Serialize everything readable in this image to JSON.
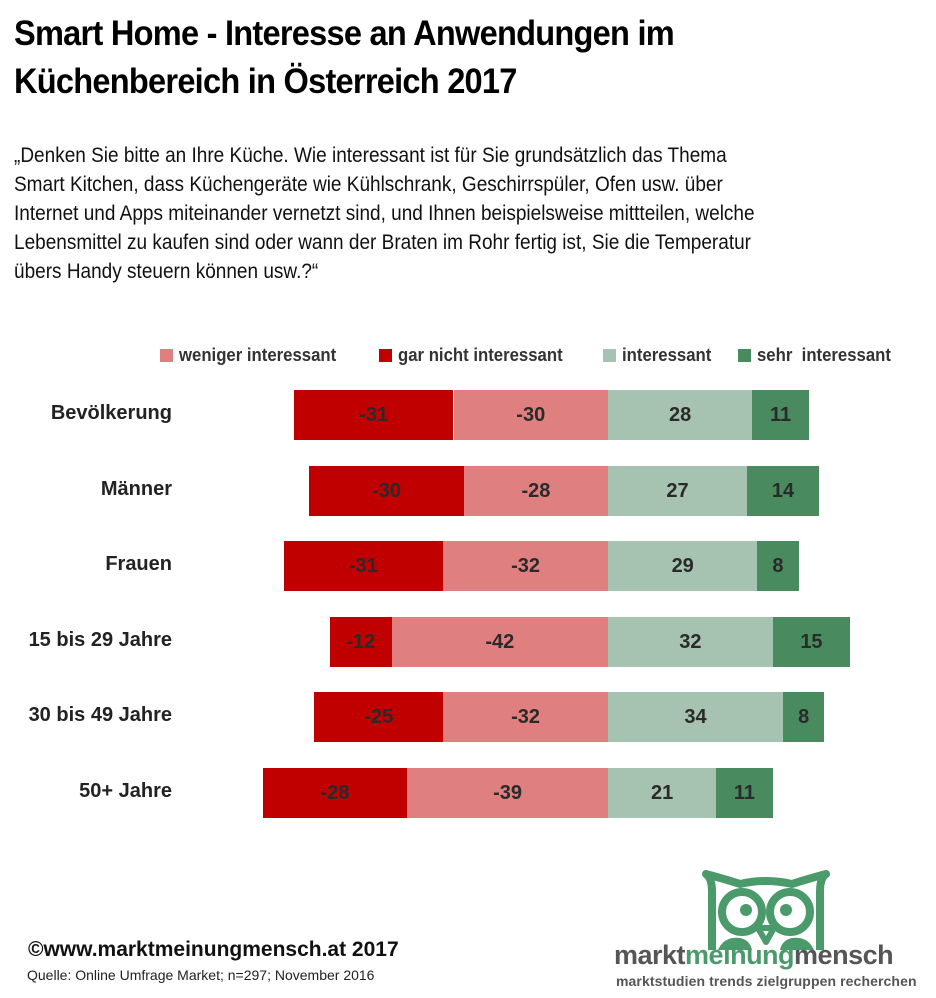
{
  "title_lines": [
    "Smart Home - Interesse an Anwendungen im",
    "Küchenbereich in Österreich 2017"
  ],
  "question_lines": [
    "„Denken Sie bitte an Ihre Küche. Wie interessant ist für Sie grundsätzlich das Thema",
    "Smart Kitchen, dass Küchengeräte wie Kühlschrank, Geschirrspüler, Ofen usw. über",
    "Internet und Apps miteinander vernetzt sind, und Ihnen beispielsweise mittteilen, welche",
    "Lebensmittel zu kaufen sind oder wann der Braten im Rohr fertig ist, Sie die Temperatur",
    "übers Handy steuern können usw.?“"
  ],
  "colors": {
    "gar_nicht": "#c00000",
    "weniger": "#e07f7f",
    "interessant": "#a6c3b1",
    "sehr": "#4a8a5f",
    "logo_green": "#4b9a6b",
    "logo_gray": "#555555"
  },
  "chart_data": {
    "type": "bar",
    "orientation": "horizontal",
    "stacked": true,
    "diverging": true,
    "title": "Smart Home - Interesse an Anwendungen im Küchenbereich in Österreich 2017",
    "categories": [
      "Bevölkerung",
      "Männer",
      "Frauen",
      "15 bis 29 Jahre",
      "30 bis 49 Jahre",
      "50+ Jahre"
    ],
    "legend_order": [
      "weniger interessant",
      "gar nicht interessant",
      "interessant",
      "sehr  interessant"
    ],
    "legend_position": "top-right",
    "series": [
      {
        "key": "gar_nicht",
        "name": "gar nicht interessant",
        "side": "negative-outer",
        "values": [
          -31,
          -30,
          -31,
          -12,
          -25,
          -28
        ]
      },
      {
        "key": "weniger",
        "name": "weniger interessant",
        "side": "negative-inner",
        "values": [
          -30,
          -28,
          -32,
          -42,
          -32,
          -39
        ]
      },
      {
        "key": "interessant",
        "name": "interessant",
        "side": "positive-inner",
        "values": [
          28,
          27,
          29,
          32,
          34,
          21
        ]
      },
      {
        "key": "sehr",
        "name": "sehr  interessant",
        "side": "positive-outer",
        "values": [
          11,
          14,
          8,
          15,
          8,
          11
        ]
      }
    ],
    "xlabel": "",
    "ylabel": "",
    "axis_visible": false,
    "grid": false,
    "data_labels": true
  },
  "footer": {
    "copyright": "©www.marktmeinungmensch.at 2017",
    "source": "Quelle: Online Umfrage Market; n=297; November 2016"
  },
  "logo": {
    "word1": "markt",
    "word2": "meinung",
    "word3": "mensch",
    "tagline": "marktstudien trends zielgruppen recherchen"
  }
}
